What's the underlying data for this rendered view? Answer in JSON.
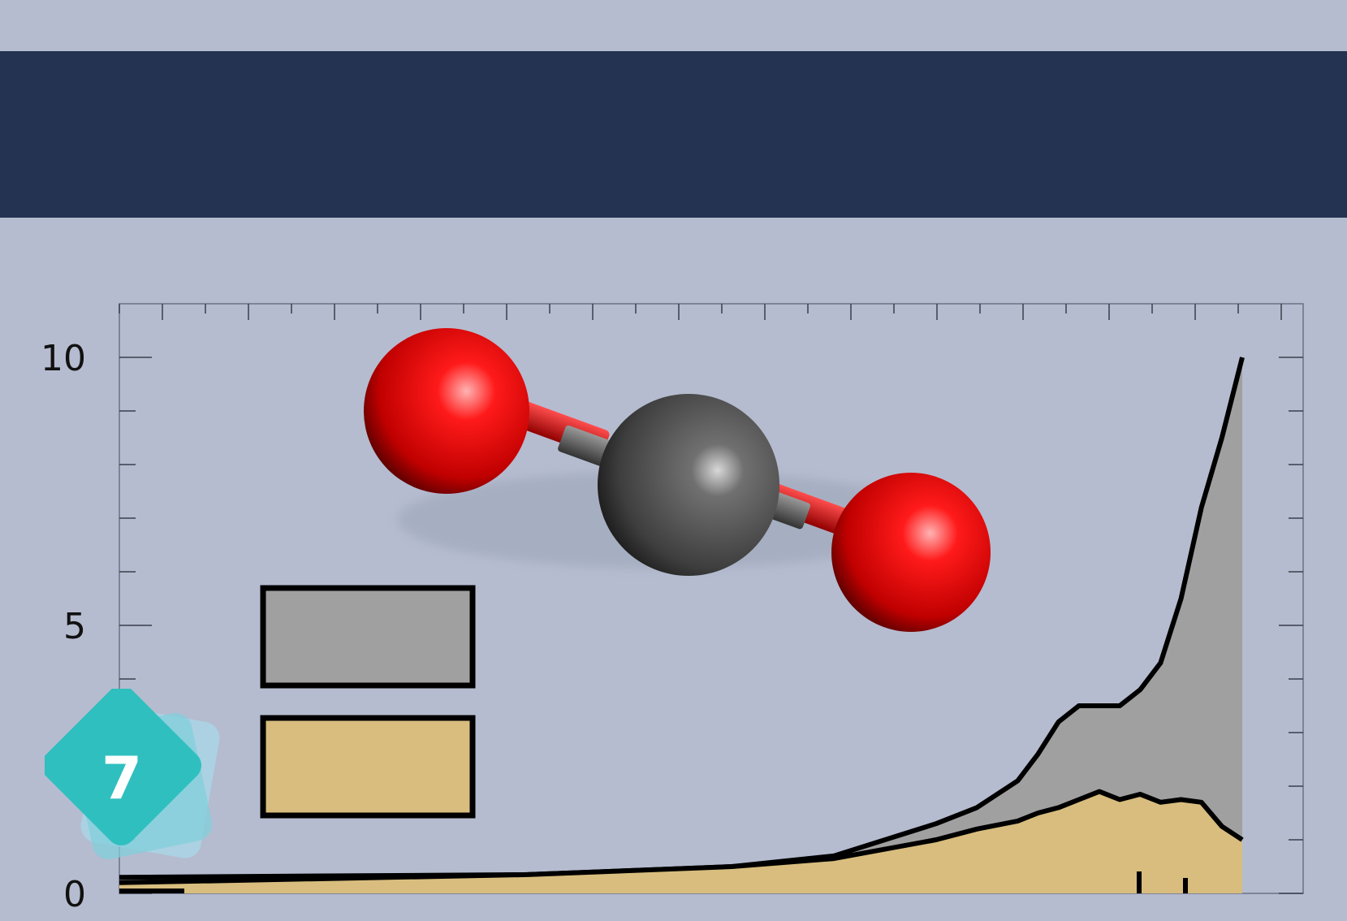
{
  "badge": {
    "number": "7",
    "color": "#2fbfbf",
    "shadow_color": "#a8d8e8"
  },
  "header": {
    "color": "#243352"
  },
  "molecule": {
    "icon": "co2-molecule-icon",
    "oxygen_color": "#e50000",
    "carbon_color": "#505050"
  },
  "chart_data": {
    "type": "area",
    "yticks": [
      {
        "value": 0,
        "label": "0"
      },
      {
        "value": 5,
        "label": "5"
      },
      {
        "value": 10,
        "label": "10"
      }
    ],
    "ylim": [
      0,
      10.5
    ],
    "xlim": [
      1750,
      2025
    ],
    "grid": false,
    "legend": {
      "placement": "center-left",
      "entries": [
        {
          "label": "",
          "color": "#a0a0a0"
        },
        {
          "label": "",
          "color": "#d8bd7e"
        }
      ]
    },
    "series": [
      {
        "color": "#a0a0a0",
        "points": [
          [
            1750,
            0.3
          ],
          [
            1850,
            0.35
          ],
          [
            1900,
            0.5
          ],
          [
            1925,
            0.7
          ],
          [
            1950,
            1.3
          ],
          [
            1960,
            1.6
          ],
          [
            1970,
            2.1
          ],
          [
            1975,
            2.6
          ],
          [
            1980,
            3.2
          ],
          [
            1985,
            3.5
          ],
          [
            1990,
            3.5
          ],
          [
            1995,
            3.5
          ],
          [
            2000,
            3.8
          ],
          [
            2005,
            4.3
          ],
          [
            2010,
            5.5
          ],
          [
            2015,
            7.2
          ],
          [
            2020,
            8.5
          ],
          [
            2025,
            10.0
          ]
        ]
      },
      {
        "color": "#d8bd7e",
        "points": [
          [
            1750,
            0.2
          ],
          [
            1850,
            0.35
          ],
          [
            1900,
            0.5
          ],
          [
            1925,
            0.65
          ],
          [
            1950,
            1.0
          ],
          [
            1960,
            1.2
          ],
          [
            1970,
            1.35
          ],
          [
            1975,
            1.5
          ],
          [
            1980,
            1.6
          ],
          [
            1985,
            1.75
          ],
          [
            1990,
            1.9
          ],
          [
            1995,
            1.75
          ],
          [
            2000,
            1.85
          ],
          [
            2005,
            1.7
          ],
          [
            2010,
            1.75
          ],
          [
            2015,
            1.7
          ],
          [
            2020,
            1.25
          ],
          [
            2025,
            1.0
          ]
        ]
      }
    ]
  }
}
